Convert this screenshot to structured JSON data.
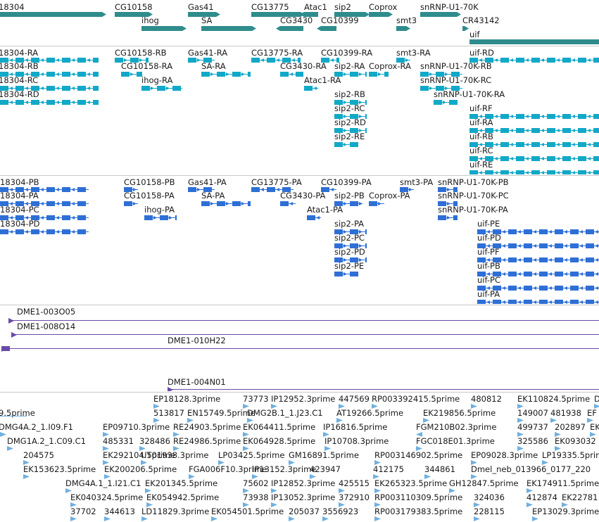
{
  "view": {
    "tracks": [
      {
        "name": "genes",
        "color": "#2f8c8c",
        "features": [
          {
            "id": "g1",
            "label": "18304"
          },
          {
            "id": "g2",
            "label": "CG10158"
          },
          {
            "id": "g3",
            "label": "Gas41"
          },
          {
            "id": "g4",
            "label": "CG13775"
          },
          {
            "id": "g5",
            "label": "Atac1"
          },
          {
            "id": "g6",
            "label": "sip2"
          },
          {
            "id": "g7",
            "label": "Coprox"
          },
          {
            "id": "g8",
            "label": "snRNP-U1-70K"
          },
          {
            "id": "g9",
            "label": "ihog"
          },
          {
            "id": "g10",
            "label": "SA"
          },
          {
            "id": "g11",
            "label": "CG3430"
          },
          {
            "id": "g12",
            "label": "CG10399"
          },
          {
            "id": "g13",
            "label": "smt3"
          },
          {
            "id": "g14",
            "label": "CR43142"
          },
          {
            "id": "g15",
            "label": "uif"
          }
        ]
      },
      {
        "name": "transcripts",
        "color": "#12a8c8",
        "features": [
          {
            "id": "t1",
            "label": "18304-RA"
          },
          {
            "id": "t2",
            "label": "CG10158-RB"
          },
          {
            "id": "t3",
            "label": "Gas41-RA"
          },
          {
            "id": "t4",
            "label": "CG13775-RA"
          },
          {
            "id": "t5",
            "label": "CG10399-RA"
          },
          {
            "id": "t6",
            "label": "smt3-RA"
          },
          {
            "id": "t7",
            "label": "uif-RD"
          },
          {
            "id": "t8",
            "label": "18304-RB"
          },
          {
            "id": "t9",
            "label": "CG10158-RA"
          },
          {
            "id": "t10",
            "label": "SA-RA"
          },
          {
            "id": "t11",
            "label": "CG3430-RA"
          },
          {
            "id": "t12",
            "label": "sip2-RA"
          },
          {
            "id": "t13",
            "label": "Coprox-RA"
          },
          {
            "id": "t14",
            "label": "snRNP-U1-70K-RB"
          },
          {
            "id": "t15",
            "label": "18304-RC"
          },
          {
            "id": "t16",
            "label": "ihog-RA"
          },
          {
            "id": "t17",
            "label": "Atac1-RA"
          },
          {
            "id": "t18",
            "label": "snRNP-U1-70K-RC"
          },
          {
            "id": "t19",
            "label": "18304-RD"
          },
          {
            "id": "t20",
            "label": "sip2-RB"
          },
          {
            "id": "t21",
            "label": "snRNP-U1-70K-RA"
          },
          {
            "id": "t22",
            "label": "sip2-RC"
          },
          {
            "id": "t23",
            "label": "uif-RF"
          },
          {
            "id": "t24",
            "label": "sip2-RD"
          },
          {
            "id": "t25",
            "label": "uif-RA"
          },
          {
            "id": "t26",
            "label": "sip2-RE"
          },
          {
            "id": "t27",
            "label": "uif-RB"
          },
          {
            "id": "t28",
            "label": "uif-RC"
          },
          {
            "id": "t29",
            "label": "uif-RE"
          }
        ]
      },
      {
        "name": "proteins",
        "color": "#2e6fd6",
        "features": [
          {
            "id": "p1",
            "label": "18304-PB"
          },
          {
            "id": "p2",
            "label": "CG10158-PB"
          },
          {
            "id": "p3",
            "label": "Gas41-PA"
          },
          {
            "id": "p4",
            "label": "CG13775-PA"
          },
          {
            "id": "p5",
            "label": "CG10399-PA"
          },
          {
            "id": "p6",
            "label": "smt3-PA"
          },
          {
            "id": "p7",
            "label": "snRNP-U1-70K-PB"
          },
          {
            "id": "p8",
            "label": "18304-PA"
          },
          {
            "id": "p9",
            "label": "CG10158-PA"
          },
          {
            "id": "p10",
            "label": "SA-PA"
          },
          {
            "id": "p11",
            "label": "CG3430-PA"
          },
          {
            "id": "p12",
            "label": "sip2-PB"
          },
          {
            "id": "p13",
            "label": "Coprox-PA"
          },
          {
            "id": "p14",
            "label": "snRNP-U1-70K-PC"
          },
          {
            "id": "p15",
            "label": "18304-PC"
          },
          {
            "id": "p16",
            "label": "ihog-PA"
          },
          {
            "id": "p17",
            "label": "Atac1-PA"
          },
          {
            "id": "p18",
            "label": "snRNP-U1-70K-PA"
          },
          {
            "id": "p19",
            "label": "18304-PD"
          },
          {
            "id": "p20",
            "label": "sip2-PA"
          },
          {
            "id": "p21",
            "label": "uif-PE"
          },
          {
            "id": "p22",
            "label": "sip2-PC"
          },
          {
            "id": "p23",
            "label": "uif-PD"
          },
          {
            "id": "p24",
            "label": "sip2-PD"
          },
          {
            "id": "p25",
            "label": "uif-PF"
          },
          {
            "id": "p26",
            "label": "sip2-PE"
          },
          {
            "id": "p27",
            "label": "uif-PB"
          },
          {
            "id": "p28",
            "label": "uif-PC"
          },
          {
            "id": "p29",
            "label": "uif-PA"
          }
        ]
      },
      {
        "name": "clones",
        "color": "#6a4aa8",
        "features": [
          {
            "id": "c1",
            "label": "DME1-003O05"
          },
          {
            "id": "c2",
            "label": "DME1-008O14"
          },
          {
            "id": "c3",
            "label": "DME1-010H22"
          },
          {
            "id": "c4",
            "label": "DME1-004N01"
          }
        ]
      },
      {
        "name": "ests",
        "color": "#6fb0e0",
        "features": [
          {
            "id": "e1",
            "label": "EP18128.3prime"
          },
          {
            "id": "e2",
            "label": "73773"
          },
          {
            "id": "e3",
            "label": "IP12952.3prime"
          },
          {
            "id": "e4",
            "label": "447569"
          },
          {
            "id": "e5",
            "label": "RP003392415.5prime"
          },
          {
            "id": "e6",
            "label": "480812"
          },
          {
            "id": "e7",
            "label": "EK110824.5prime"
          },
          {
            "id": "e8",
            "label": "D"
          },
          {
            "id": "e9",
            "label": "9.5prime"
          },
          {
            "id": "e10",
            "label": "513817"
          },
          {
            "id": "e11",
            "label": "EN15749.5prime"
          },
          {
            "id": "e12",
            "label": "DMG2B.1_1.J23.C1"
          },
          {
            "id": "e13",
            "label": "AT19266.5prime"
          },
          {
            "id": "e14",
            "label": "EK219856.5prime"
          },
          {
            "id": "e15",
            "label": "149007"
          },
          {
            "id": "e16",
            "label": "481938"
          },
          {
            "id": "e17",
            "label": "EF"
          },
          {
            "id": "e18",
            "label": "DMG4A.2_1.I09.F1"
          },
          {
            "id": "e19",
            "label": "EP09710.3prime"
          },
          {
            "id": "e20",
            "label": "RE24903.5prime"
          },
          {
            "id": "e21",
            "label": "EK064411.5prime"
          },
          {
            "id": "e22",
            "label": "IP16816.5prime"
          },
          {
            "id": "e23",
            "label": "FGM210B02.3prime"
          },
          {
            "id": "e24",
            "label": "499737"
          },
          {
            "id": "e25",
            "label": "202897"
          },
          {
            "id": "e26",
            "label": "EK"
          },
          {
            "id": "e27",
            "label": "DMG1A.2_1.C09.C1"
          },
          {
            "id": "e28",
            "label": "485331"
          },
          {
            "id": "e29",
            "label": "328486"
          },
          {
            "id": "e30",
            "label": "RE24986.5prime"
          },
          {
            "id": "e31",
            "label": "EK064928.5prime"
          },
          {
            "id": "e32",
            "label": "IP10708.3prime"
          },
          {
            "id": "e33",
            "label": "FGC018E01.3prime"
          },
          {
            "id": "e34",
            "label": "325586"
          },
          {
            "id": "e35",
            "label": "EK093032"
          },
          {
            "id": "e36",
            "label": "204575"
          },
          {
            "id": "e37",
            "label": "EK292104.5prime"
          },
          {
            "id": "e38",
            "label": "UT01938.3prime"
          },
          {
            "id": "e39",
            "label": "LP03425.5prime"
          },
          {
            "id": "e40",
            "label": "GM16891.5prime"
          },
          {
            "id": "e41",
            "label": "RP003146902.5prime"
          },
          {
            "id": "e42",
            "label": "EP09028.3prime"
          },
          {
            "id": "e43",
            "label": "LP19335.5prim"
          },
          {
            "id": "e44",
            "label": "EK153623.5prime"
          },
          {
            "id": "e45",
            "label": "EK200206.5prime"
          },
          {
            "id": "e46",
            "label": "FGA006F10.3prime"
          },
          {
            "id": "e47",
            "label": "IP13152.3prime"
          },
          {
            "id": "e48",
            "label": "423947"
          },
          {
            "id": "e49",
            "label": "412175"
          },
          {
            "id": "e50",
            "label": "344861"
          },
          {
            "id": "e51",
            "label": "Dmel_neb_013966_0177_220"
          },
          {
            "id": "e52",
            "label": "DMG4A.1_1.I21.C1"
          },
          {
            "id": "e53",
            "label": "EK201345.5prime"
          },
          {
            "id": "e54",
            "label": "75602"
          },
          {
            "id": "e55",
            "label": "IP12852.3prime"
          },
          {
            "id": "e56",
            "label": "425515"
          },
          {
            "id": "e57",
            "label": "EK265323.5prime"
          },
          {
            "id": "e58",
            "label": "GH12847.5prime"
          },
          {
            "id": "e59",
            "label": "EK174911.5prime"
          },
          {
            "id": "e60",
            "label": "EK040324.5prime"
          },
          {
            "id": "e61",
            "label": "EK054942.5prime"
          },
          {
            "id": "e62",
            "label": "73938"
          },
          {
            "id": "e63",
            "label": "IP13052.3prime"
          },
          {
            "id": "e64",
            "label": "372910"
          },
          {
            "id": "e65",
            "label": "RP003110309.5prime"
          },
          {
            "id": "e66",
            "label": "324036"
          },
          {
            "id": "e67",
            "label": "412874"
          },
          {
            "id": "e68",
            "label": "EK22781"
          },
          {
            "id": "e69",
            "label": "37702"
          },
          {
            "id": "e70",
            "label": "344613"
          },
          {
            "id": "e71",
            "label": "LD11829.3prime"
          },
          {
            "id": "e72",
            "label": "EK054501.5prime"
          },
          {
            "id": "e73",
            "label": "205037"
          },
          {
            "id": "e74",
            "label": "3556923"
          },
          {
            "id": "e75",
            "label": "RP003179383.5prime"
          },
          {
            "id": "e76",
            "label": "228115"
          },
          {
            "id": "e77",
            "label": "EP13029.3prime"
          }
        ]
      }
    ]
  }
}
